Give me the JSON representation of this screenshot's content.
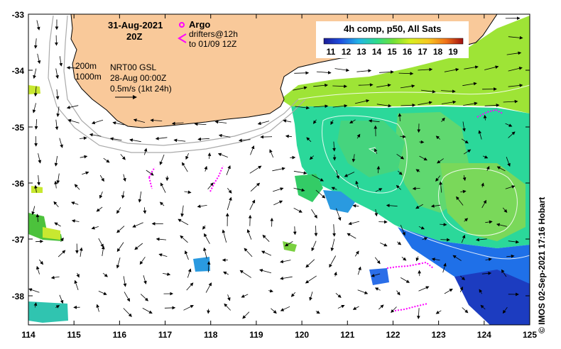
{
  "header": {
    "date": "31-Aug-2021",
    "time": "20Z",
    "argo_label": "Argo",
    "drifters_label": "drifters@12h",
    "drifters_until": "to 01/09 12Z",
    "depth_200": "200m",
    "depth_1000": "1000m",
    "product": "NRT00 GSL",
    "product_date": "28-Aug 00:00Z",
    "speed_scale": "0.5m/s (1kt 24h)"
  },
  "colorbar": {
    "title": "4h comp, p50, All Sats",
    "ticks": [
      "11",
      "12",
      "13",
      "14",
      "15",
      "16",
      "17",
      "18",
      "19"
    ],
    "colors": [
      "#1c1c96",
      "#1f3fd8",
      "#1f7ff0",
      "#27c0e0",
      "#2ee08a",
      "#60e040",
      "#c8f020",
      "#f8d020",
      "#f09020",
      "#d04010",
      "#a01010"
    ]
  },
  "axes": {
    "x_ticks": [
      "114",
      "115",
      "116",
      "117",
      "118",
      "119",
      "120",
      "121",
      "122",
      "123",
      "124",
      "125"
    ],
    "y_ticks": [
      "-33",
      "-34",
      "-35",
      "-36",
      "-37",
      "-38"
    ]
  },
  "credit": "© IMOS 02-Sep-2021 17:16 Hobart",
  "colors": {
    "land": "#f9c99a",
    "isobath": "#aaaaaa",
    "drifter": "#ff00ff",
    "sst_cool": "#22d8a0",
    "sst_warm": "#9ee436"
  }
}
